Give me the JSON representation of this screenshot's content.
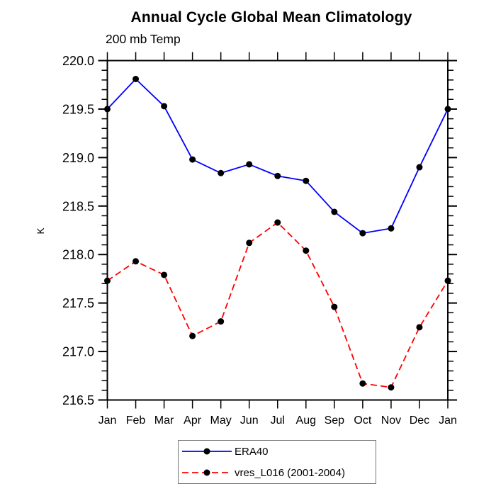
{
  "header": {
    "title": "Annual Cycle Global Mean Climatology",
    "subtitle": "200 mb Temp"
  },
  "y_axis": {
    "unit_label": "K"
  },
  "legend": {
    "position": "bottom",
    "entries": [
      {
        "label": "ERA40",
        "color": "#0000ff",
        "line_style": "solid",
        "marker": "black-dot"
      },
      {
        "label": "vres_L016 (2001-2004)",
        "color": "#ff0000",
        "line_style": "dashed",
        "marker": "black-dot"
      }
    ]
  },
  "chart_data": {
    "type": "line",
    "title": "Annual Cycle Global Mean Climatology",
    "subtitle": "200 mb Temp",
    "xlabel": "",
    "ylabel": "K",
    "categories": [
      "Jan",
      "Feb",
      "Mar",
      "Apr",
      "May",
      "Jun",
      "Jul",
      "Aug",
      "Sep",
      "Oct",
      "Nov",
      "Dec",
      "Jan"
    ],
    "ylim": [
      216.5,
      220.0
    ],
    "ytick_step": 0.5,
    "y_minor_step": 0.1,
    "y_tick_labels": [
      "216.5",
      "217.0",
      "217.5",
      "218.0",
      "218.5",
      "219.0",
      "219.5",
      "220.0"
    ],
    "grid": false,
    "legend_position": "bottom-center",
    "marker_color": "#000000",
    "axis_color": "#000000",
    "series": [
      {
        "name": "ERA40",
        "color": "#0000ff",
        "style": "solid",
        "marker": "black-dot",
        "values": [
          219.5,
          219.81,
          219.53,
          218.98,
          218.84,
          218.93,
          218.81,
          218.76,
          218.44,
          218.22,
          218.27,
          218.9,
          219.5
        ]
      },
      {
        "name": "vres_L016 (2001-2004)",
        "color": "#ff0000",
        "style": "dashed",
        "marker": "black-dot",
        "values": [
          217.73,
          217.93,
          217.79,
          217.16,
          217.31,
          218.12,
          218.33,
          218.04,
          217.46,
          216.67,
          216.63,
          217.25,
          217.73
        ]
      }
    ]
  }
}
